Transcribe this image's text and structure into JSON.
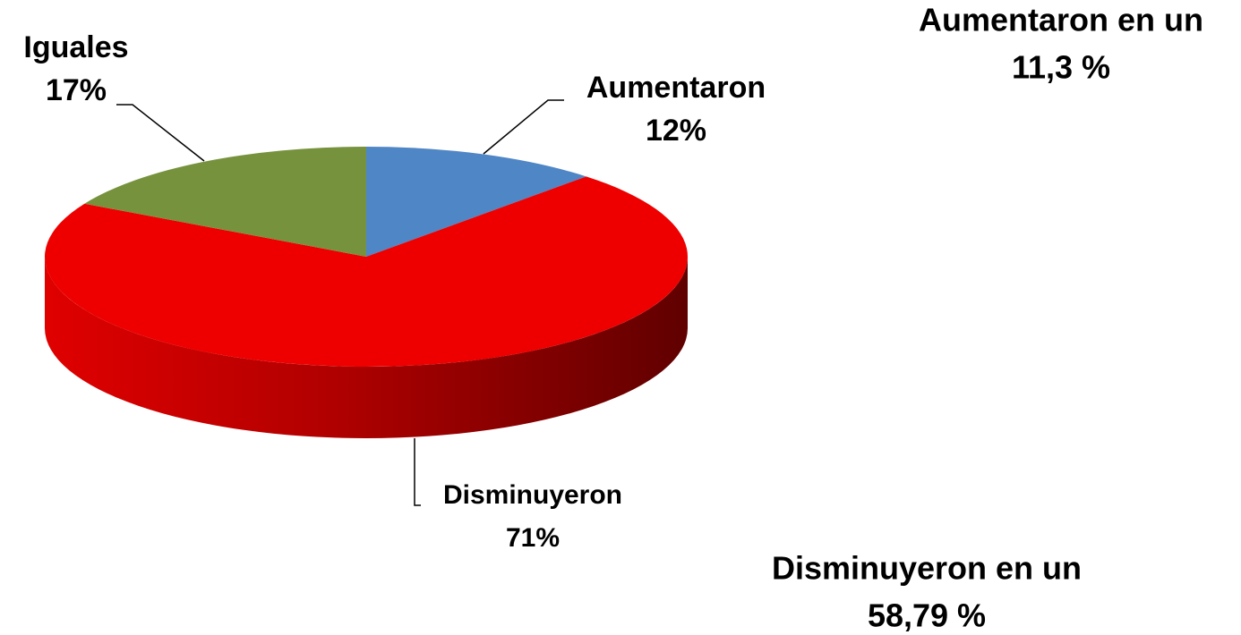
{
  "chart_data": {
    "type": "pie",
    "categories": [
      "Aumentaron",
      "Disminuyeron",
      "Iguales"
    ],
    "values": [
      12,
      71,
      17
    ],
    "value_labels": [
      "12%",
      "71%",
      "17%"
    ],
    "colors": [
      "#4f86c6",
      "#ee0000",
      "#76923c"
    ],
    "annotations": [
      {
        "lines": [
          "Aumentaron en un",
          "11,3 %"
        ]
      },
      {
        "lines": [
          "Disminuyeron en un",
          "58,79 %"
        ]
      }
    ]
  }
}
